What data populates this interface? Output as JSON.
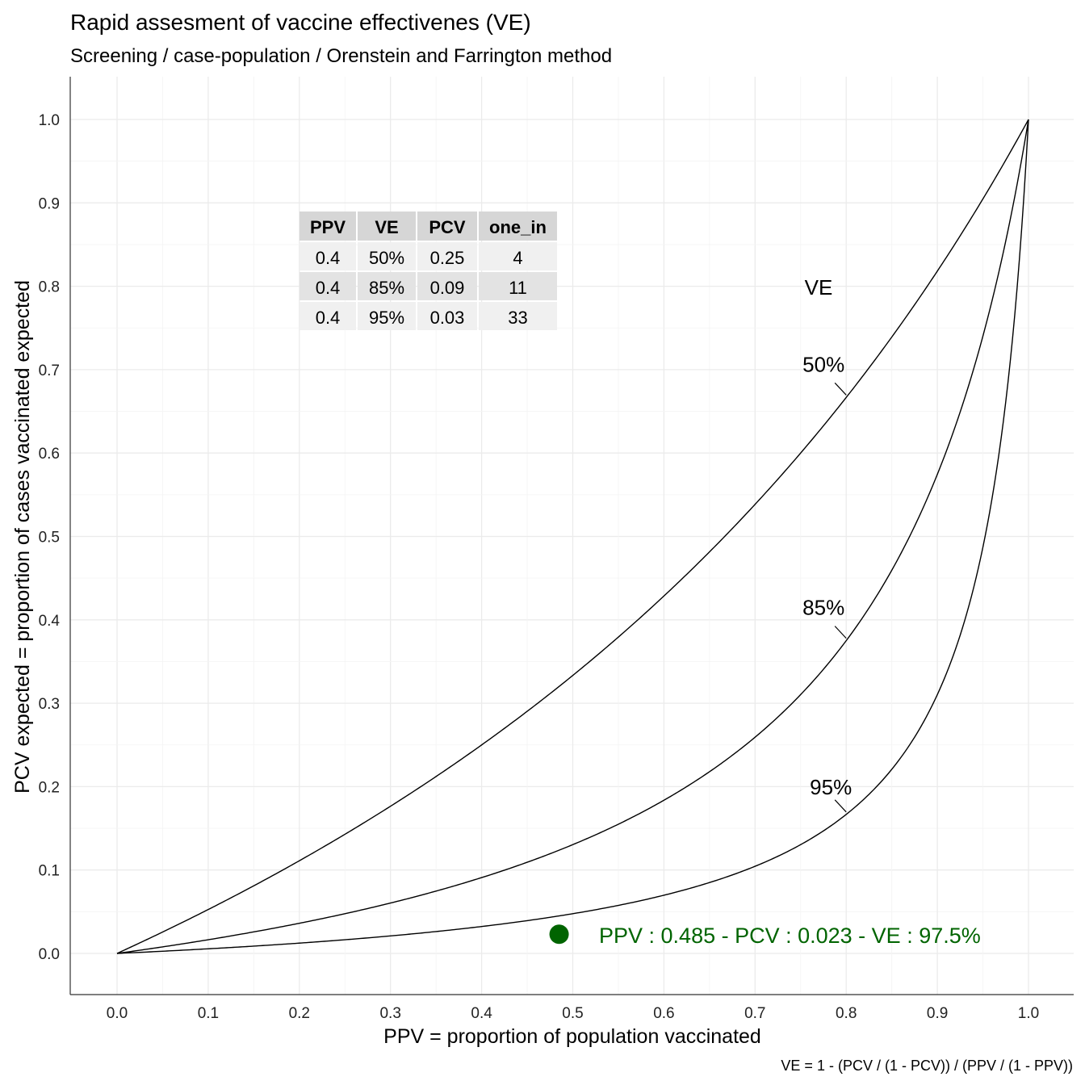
{
  "chart_data": {
    "type": "line",
    "title": "Rapid assesment of vaccine effectivenes (VE)",
    "subtitle": "Screening / case-population / Orenstein and Farrington method",
    "xlabel": "PPV = proportion of population vaccinated",
    "ylabel": "PCV expected = proportion of cases vaccinated expected",
    "caption": "VE = 1 - (PCV / (1 - PCV)) / (PPV / (1 - PPV))",
    "xlim": [
      0,
      1
    ],
    "ylim": [
      0,
      1
    ],
    "x_ticks": [
      "0.0",
      "0.1",
      "0.2",
      "0.3",
      "0.4",
      "0.5",
      "0.6",
      "0.7",
      "0.8",
      "0.9",
      "1.0"
    ],
    "y_ticks": [
      "0.0",
      "0.1",
      "0.2",
      "0.3",
      "0.4",
      "0.5",
      "0.6",
      "0.7",
      "0.8",
      "0.9",
      "1.0"
    ],
    "grid": true,
    "legend_title": "VE",
    "series": [
      {
        "name": "50%",
        "ve": 0.5,
        "label_at_x": 0.8,
        "x": [
          0,
          0.1,
          0.2,
          0.3,
          0.4,
          0.5,
          0.6,
          0.7,
          0.8,
          0.9,
          1.0
        ],
        "y": [
          0,
          0.053,
          0.111,
          0.176,
          0.25,
          0.333,
          0.429,
          0.538,
          0.667,
          0.818,
          1.0
        ]
      },
      {
        "name": "85%",
        "ve": 0.85,
        "label_at_x": 0.8,
        "x": [
          0,
          0.1,
          0.2,
          0.3,
          0.4,
          0.5,
          0.6,
          0.7,
          0.8,
          0.9,
          1.0
        ],
        "y": [
          0,
          0.016,
          0.036,
          0.06,
          0.091,
          0.13,
          0.184,
          0.259,
          0.375,
          0.574,
          1.0
        ]
      },
      {
        "name": "95%",
        "ve": 0.95,
        "label_at_x": 0.8,
        "x": [
          0,
          0.1,
          0.2,
          0.3,
          0.4,
          0.5,
          0.6,
          0.7,
          0.8,
          0.9,
          1.0
        ],
        "y": [
          0,
          0.006,
          0.012,
          0.021,
          0.032,
          0.048,
          0.07,
          0.104,
          0.167,
          0.31,
          1.0
        ]
      }
    ],
    "point": {
      "x": 0.485,
      "y": 0.023,
      "color": "#006400",
      "label": "PPV : 0.485 - PCV : 0.023 - VE : 97.5%"
    },
    "table": {
      "columns": [
        "PPV",
        "VE",
        "PCV",
        "one_in"
      ],
      "rows": [
        [
          "0.4",
          "50%",
          "0.25",
          "4"
        ],
        [
          "0.4",
          "85%",
          "0.09",
          "11"
        ],
        [
          "0.4",
          "95%",
          "0.03",
          "33"
        ]
      ]
    }
  }
}
